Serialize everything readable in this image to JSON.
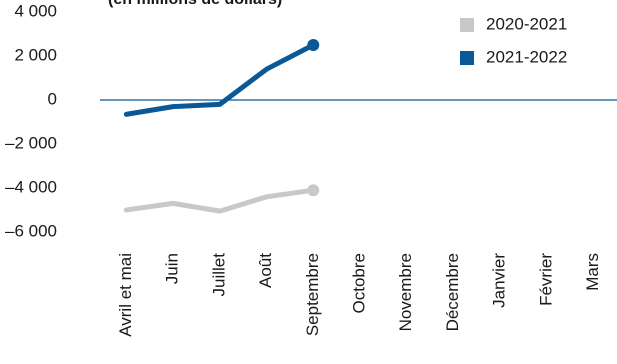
{
  "chart_data": {
    "type": "line",
    "subtitle": "(en millions de dollars)",
    "categories": [
      "Avril et mai",
      "Juin",
      "Juillet",
      "Août",
      "Septembre",
      "Octobre",
      "Novembre",
      "Décembre",
      "Janvier",
      "Février",
      "Mars"
    ],
    "series": [
      {
        "name": "2020-2021",
        "color": "#c8c8c8",
        "values": [
          -5000,
          -4700,
          -5050,
          -4400,
          -4100,
          null,
          null,
          null,
          null,
          null,
          null
        ]
      },
      {
        "name": "2021-2022",
        "color": "#0b5896",
        "values": [
          -650,
          -300,
          -200,
          1400,
          2500,
          null,
          null,
          null,
          null,
          null,
          null
        ]
      }
    ],
    "ylim": [
      -6000,
      4000
    ],
    "yticks": [
      {
        "value": 4000,
        "label": "4 000"
      },
      {
        "value": 2000,
        "label": "2 000"
      },
      0,
      {
        "value": -2000,
        "label": "–2 000"
      },
      {
        "value": -4000,
        "label": "–4 000"
      },
      {
        "value": -6000,
        "label": "–6 000"
      }
    ],
    "zero_line_color": "#0b5896",
    "legend": "top-right"
  }
}
